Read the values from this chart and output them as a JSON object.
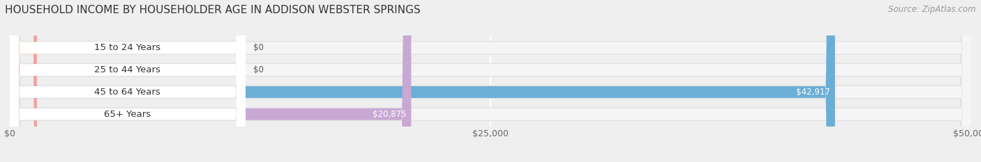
{
  "title": "HOUSEHOLD INCOME BY HOUSEHOLDER AGE IN ADDISON WEBSTER SPRINGS",
  "source": "Source: ZipAtlas.com",
  "categories": [
    "15 to 24 Years",
    "25 to 44 Years",
    "45 to 64 Years",
    "65+ Years"
  ],
  "values": [
    0,
    0,
    42917,
    20875
  ],
  "bar_colors": [
    "#f5c496",
    "#f0a0a0",
    "#6baed6",
    "#c9a8d4"
  ],
  "xlim": [
    0,
    50000
  ],
  "xticks": [
    0,
    25000,
    50000
  ],
  "xticklabels": [
    "$0",
    "$25,000",
    "$50,000"
  ],
  "background_color": "#efefef",
  "bar_bg_color": "#e2e2e2",
  "title_fontsize": 11,
  "source_fontsize": 8.5,
  "label_fontsize": 9.5,
  "value_fontsize": 8.5,
  "bar_height": 0.62,
  "figsize": [
    14.06,
    2.33
  ],
  "dpi": 100
}
